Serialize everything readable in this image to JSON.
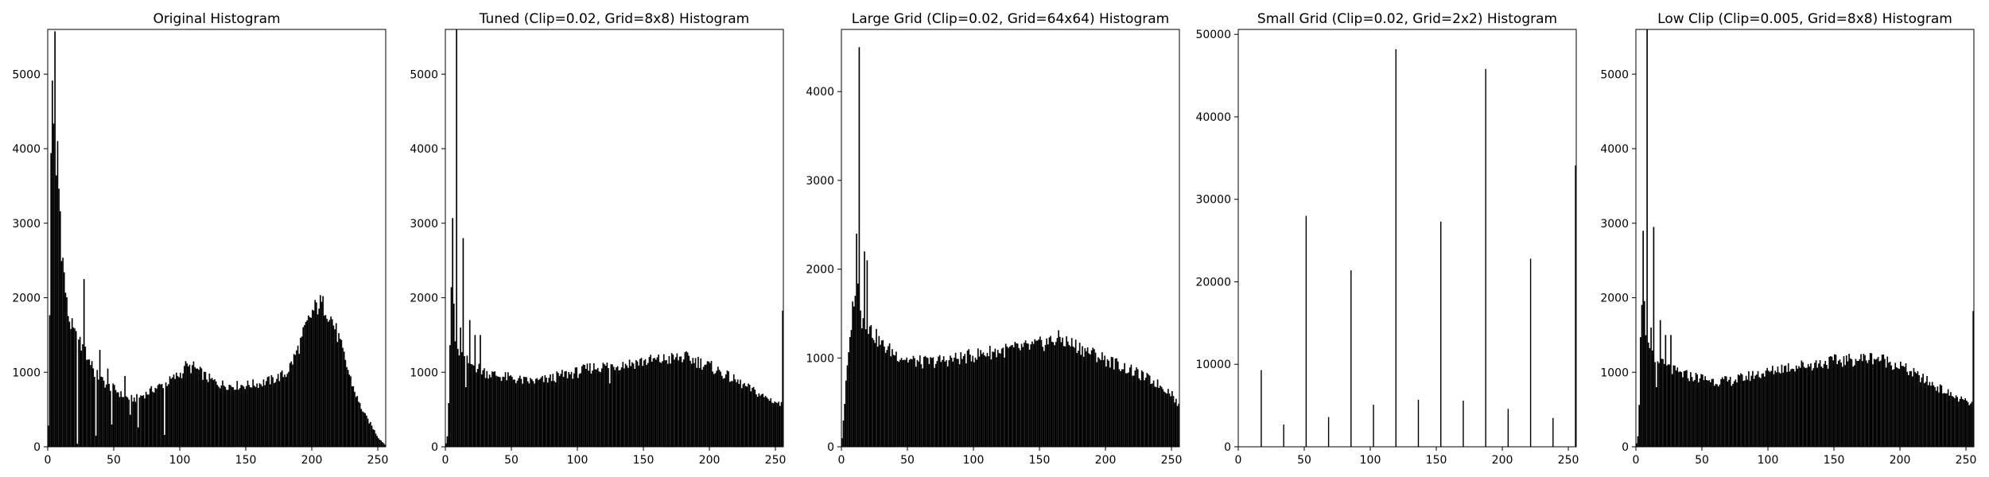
{
  "colors": {
    "bar": "#000000",
    "axes": "#000000",
    "background": "#ffffff"
  },
  "chart_data": [
    {
      "type": "bar",
      "title": "Original Histogram",
      "xlabel": "",
      "ylabel": "",
      "xlim": [
        0,
        256
      ],
      "ylim": [
        0,
        5600
      ],
      "xticks": [
        0,
        50,
        100,
        150,
        200,
        250
      ],
      "yticks": [
        0,
        1000,
        2000,
        3000,
        4000,
        5000
      ],
      "grid": false,
      "bins": 256,
      "curve": [
        [
          0,
          300
        ],
        [
          1,
          1700
        ],
        [
          2,
          3900
        ],
        [
          3,
          4950
        ],
        [
          4,
          4500
        ],
        [
          5,
          5300
        ],
        [
          6,
          3500
        ],
        [
          7,
          4100
        ],
        [
          8,
          3450
        ],
        [
          9,
          3150
        ],
        [
          10,
          2700
        ],
        [
          12,
          2300
        ],
        [
          14,
          1900
        ],
        [
          16,
          1700
        ],
        [
          18,
          1600
        ],
        [
          20,
          1500
        ],
        [
          25,
          1350
        ],
        [
          30,
          1200
        ],
        [
          35,
          1000
        ],
        [
          40,
          900
        ],
        [
          45,
          820
        ],
        [
          50,
          780
        ],
        [
          55,
          700
        ],
        [
          60,
          660
        ],
        [
          65,
          640
        ],
        [
          70,
          680
        ],
        [
          75,
          720
        ],
        [
          80,
          780
        ],
        [
          85,
          820
        ],
        [
          90,
          860
        ],
        [
          95,
          920
        ],
        [
          100,
          980
        ],
        [
          105,
          1050
        ],
        [
          110,
          1070
        ],
        [
          115,
          1000
        ],
        [
          120,
          930
        ],
        [
          125,
          880
        ],
        [
          130,
          840
        ],
        [
          140,
          820
        ],
        [
          150,
          830
        ],
        [
          160,
          850
        ],
        [
          170,
          900
        ],
        [
          180,
          980
        ],
        [
          185,
          1150
        ],
        [
          190,
          1350
        ],
        [
          195,
          1600
        ],
        [
          200,
          1800
        ],
        [
          205,
          1920
        ],
        [
          210,
          1880
        ],
        [
          215,
          1700
        ],
        [
          220,
          1450
        ],
        [
          225,
          1150
        ],
        [
          230,
          850
        ],
        [
          235,
          600
        ],
        [
          240,
          420
        ],
        [
          245,
          280
        ],
        [
          250,
          120
        ],
        [
          255,
          30
        ]
      ],
      "spikes": [
        [
          27,
          2250
        ],
        [
          33,
          1150
        ],
        [
          39,
          1300
        ],
        [
          45,
          1050
        ],
        [
          58,
          950
        ],
        [
          104,
          1150
        ],
        [
          62,
          430
        ],
        [
          22,
          40
        ],
        [
          36,
          150
        ],
        [
          48,
          300
        ],
        [
          68,
          260
        ],
        [
          88,
          160
        ]
      ]
    },
    {
      "type": "bar",
      "title": "Tuned (Clip=0.02, Grid=8x8) Histogram",
      "xlabel": "",
      "ylabel": "",
      "xlim": [
        0,
        256
      ],
      "ylim": [
        0,
        5600
      ],
      "xticks": [
        0,
        50,
        100,
        150,
        200,
        250
      ],
      "yticks": [
        0,
        1000,
        2000,
        3000,
        4000,
        5000
      ],
      "grid": false,
      "bins": 256,
      "curve": [
        [
          0,
          50
        ],
        [
          1,
          150
        ],
        [
          2,
          600
        ],
        [
          3,
          1400
        ],
        [
          4,
          2000
        ],
        [
          5,
          3050
        ],
        [
          6,
          1900
        ],
        [
          7,
          1400
        ],
        [
          8,
          1350
        ],
        [
          9,
          1300
        ],
        [
          10,
          1250
        ],
        [
          15,
          1150
        ],
        [
          20,
          1100
        ],
        [
          25,
          1050
        ],
        [
          30,
          1000
        ],
        [
          40,
          950
        ],
        [
          50,
          920
        ],
        [
          60,
          880
        ],
        [
          70,
          880
        ],
        [
          80,
          920
        ],
        [
          90,
          970
        ],
        [
          100,
          1000
        ],
        [
          110,
          1060
        ],
        [
          120,
          1080
        ],
        [
          130,
          1100
        ],
        [
          140,
          1120
        ],
        [
          150,
          1150
        ],
        [
          160,
          1160
        ],
        [
          170,
          1180
        ],
        [
          180,
          1200
        ],
        [
          190,
          1150
        ],
        [
          200,
          1080
        ],
        [
          210,
          980
        ],
        [
          220,
          880
        ],
        [
          230,
          780
        ],
        [
          240,
          680
        ],
        [
          250,
          600
        ],
        [
          254,
          560
        ],
        [
          255,
          1920
        ]
      ],
      "spikes": [
        [
          8,
          5600
        ],
        [
          13,
          2800
        ],
        [
          18,
          1700
        ],
        [
          11,
          1600
        ],
        [
          22,
          1500
        ],
        [
          26,
          1500
        ],
        [
          124,
          850
        ],
        [
          15,
          800
        ]
      ]
    },
    {
      "type": "bar",
      "title": "Large Grid (Clip=0.02, Grid=64x64) Histogram",
      "xlabel": "",
      "ylabel": "",
      "xlim": [
        0,
        256
      ],
      "ylim": [
        0,
        4700
      ],
      "xticks": [
        0,
        50,
        100,
        150,
        200,
        250
      ],
      "yticks": [
        0,
        1000,
        2000,
        3000,
        4000
      ],
      "grid": false,
      "bins": 256,
      "curve": [
        [
          0,
          100
        ],
        [
          1,
          300
        ],
        [
          2,
          500
        ],
        [
          3,
          700
        ],
        [
          4,
          900
        ],
        [
          5,
          1000
        ],
        [
          6,
          1200
        ],
        [
          7,
          1400
        ],
        [
          8,
          1550
        ],
        [
          9,
          1700
        ],
        [
          10,
          1600
        ],
        [
          11,
          2350
        ],
        [
          12,
          1800
        ],
        [
          13,
          1350
        ],
        [
          14,
          1650
        ],
        [
          15,
          1400
        ],
        [
          16,
          1450
        ],
        [
          17,
          1400
        ],
        [
          18,
          1400
        ],
        [
          20,
          1350
        ],
        [
          25,
          1250
        ],
        [
          30,
          1150
        ],
        [
          40,
          1050
        ],
        [
          50,
          980
        ],
        [
          60,
          950
        ],
        [
          70,
          960
        ],
        [
          80,
          980
        ],
        [
          90,
          1000
        ],
        [
          100,
          1030
        ],
        [
          110,
          1060
        ],
        [
          120,
          1080
        ],
        [
          130,
          1100
        ],
        [
          140,
          1120
        ],
        [
          150,
          1150
        ],
        [
          155,
          1180
        ],
        [
          160,
          1200
        ],
        [
          165,
          1220
        ],
        [
          170,
          1180
        ],
        [
          180,
          1120
        ],
        [
          190,
          1050
        ],
        [
          200,
          980
        ],
        [
          210,
          920
        ],
        [
          220,
          850
        ],
        [
          230,
          780
        ],
        [
          240,
          700
        ],
        [
          250,
          600
        ],
        [
          255,
          450
        ]
      ],
      "spikes": [
        [
          13,
          4500
        ],
        [
          17,
          2200
        ],
        [
          19,
          2100
        ],
        [
          11,
          2400
        ],
        [
          10,
          1700
        ]
      ]
    },
    {
      "type": "bar",
      "title": "Small Grid (Clip=0.02, Grid=2x2) Histogram",
      "xlabel": "",
      "ylabel": "",
      "xlim": [
        0,
        256
      ],
      "ylim": [
        0,
        50600
      ],
      "xticks": [
        0,
        50,
        100,
        150,
        200,
        250
      ],
      "yticks": [
        0,
        10000,
        20000,
        30000,
        40000,
        50000
      ],
      "grid": false,
      "bins": 256,
      "curve": [
        [
          0,
          0
        ],
        [
          255,
          0
        ]
      ],
      "spikes": [
        [
          17,
          9300
        ],
        [
          34,
          2700
        ],
        [
          51,
          28000
        ],
        [
          68,
          3600
        ],
        [
          85,
          21400
        ],
        [
          102,
          5100
        ],
        [
          119,
          48200
        ],
        [
          136,
          5700
        ],
        [
          153,
          27300
        ],
        [
          170,
          5600
        ],
        [
          187,
          45800
        ],
        [
          204,
          4600
        ],
        [
          221,
          22800
        ],
        [
          238,
          3500
        ],
        [
          255,
          34100
        ]
      ]
    },
    {
      "type": "bar",
      "title": "Low Clip (Clip=0.005, Grid=8x8) Histogram",
      "xlabel": "",
      "ylabel": "",
      "xlim": [
        0,
        256
      ],
      "ylim": [
        0,
        5600
      ],
      "xticks": [
        0,
        50,
        100,
        150,
        200,
        250
      ],
      "yticks": [
        0,
        1000,
        2000,
        3000,
        4000,
        5000
      ],
      "grid": false,
      "bins": 256,
      "curve": [
        [
          0,
          50
        ],
        [
          1,
          150
        ],
        [
          2,
          600
        ],
        [
          3,
          1400
        ],
        [
          4,
          2000
        ],
        [
          5,
          3050
        ],
        [
          6,
          1900
        ],
        [
          7,
          1400
        ],
        [
          8,
          1350
        ],
        [
          9,
          1300
        ],
        [
          10,
          1250
        ],
        [
          15,
          1150
        ],
        [
          20,
          1100
        ],
        [
          25,
          1050
        ],
        [
          30,
          1000
        ],
        [
          40,
          950
        ],
        [
          50,
          920
        ],
        [
          60,
          880
        ],
        [
          70,
          880
        ],
        [
          80,
          920
        ],
        [
          90,
          970
        ],
        [
          100,
          1000
        ],
        [
          110,
          1060
        ],
        [
          120,
          1080
        ],
        [
          130,
          1100
        ],
        [
          140,
          1120
        ],
        [
          150,
          1150
        ],
        [
          160,
          1160
        ],
        [
          170,
          1180
        ],
        [
          180,
          1200
        ],
        [
          190,
          1150
        ],
        [
          200,
          1080
        ],
        [
          210,
          980
        ],
        [
          220,
          880
        ],
        [
          230,
          780
        ],
        [
          240,
          680
        ],
        [
          250,
          600
        ],
        [
          254,
          560
        ],
        [
          255,
          1920
        ]
      ],
      "spikes": [
        [
          8,
          5600
        ],
        [
          13,
          2950
        ],
        [
          18,
          1700
        ],
        [
          11,
          1600
        ],
        [
          22,
          1500
        ],
        [
          26,
          1500
        ],
        [
          15,
          800
        ]
      ]
    }
  ]
}
